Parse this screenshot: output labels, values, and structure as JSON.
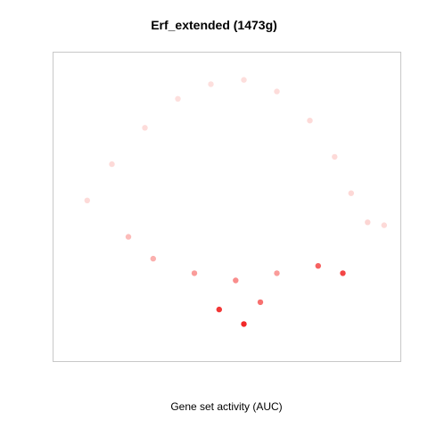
{
  "chart_data": {
    "type": "scatter",
    "title": "Erf_extended (1473g)",
    "xlabel": "Gene set activity (AUC)",
    "ylabel": "",
    "grid": false,
    "legend": "none",
    "color_scale": {
      "low": "#fde6e4",
      "mid": "#fbaaa8",
      "high": "#f01a1a"
    },
    "series": [
      {
        "points": [
          [
            -0.85,
            0.05,
            0.1
          ],
          [
            -0.7,
            0.3,
            0.1
          ],
          [
            -0.5,
            0.55,
            0.08
          ],
          [
            -0.3,
            0.75,
            0.06
          ],
          [
            -0.1,
            0.85,
            0.06
          ],
          [
            0.1,
            0.88,
            0.07
          ],
          [
            0.3,
            0.8,
            0.08
          ],
          [
            0.5,
            0.6,
            0.1
          ],
          [
            0.65,
            0.35,
            0.1
          ],
          [
            0.75,
            0.1,
            0.12
          ],
          [
            0.85,
            -0.1,
            0.14
          ],
          [
            0.95,
            -0.12,
            0.1
          ],
          [
            -0.6,
            -0.2,
            0.35
          ],
          [
            -0.45,
            -0.35,
            0.45
          ],
          [
            -0.2,
            -0.45,
            0.55
          ],
          [
            0.05,
            -0.5,
            0.6
          ],
          [
            0.3,
            -0.45,
            0.55
          ],
          [
            0.55,
            -0.4,
            0.75
          ],
          [
            0.7,
            -0.45,
            0.85
          ],
          [
            -0.05,
            -0.7,
            0.9
          ],
          [
            0.1,
            -0.8,
            0.95
          ],
          [
            0.2,
            -0.65,
            0.7
          ]
        ]
      }
    ]
  }
}
